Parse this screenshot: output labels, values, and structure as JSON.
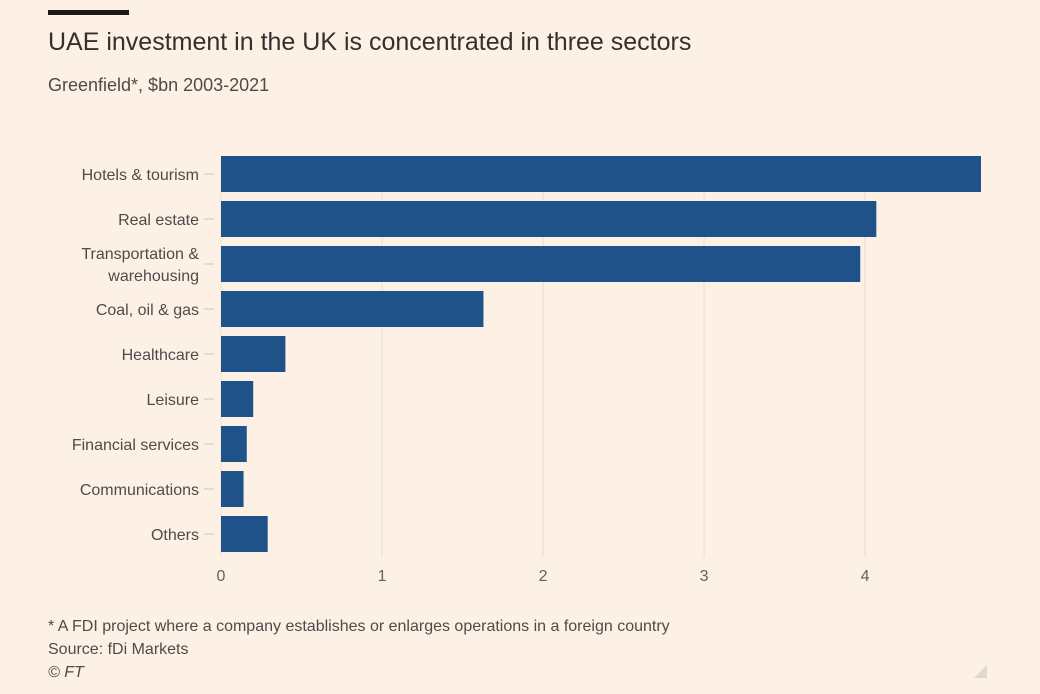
{
  "header": {
    "title": "UAE investment in the UK is concentrated in three sectors",
    "subtitle": "Greenfield*, $bn 2003-2021"
  },
  "footer": {
    "note": "* A FDI project where a company establishes or enlarges operations in a foreign country",
    "source": "Source: fDi Markets",
    "credit": "© FT"
  },
  "colors": {
    "bar": "#1f5289",
    "background": "#fdf1e6",
    "grid": "#e9ded4"
  },
  "chart_data": {
    "type": "bar",
    "orientation": "horizontal",
    "title": "UAE investment in the UK is concentrated in three sectors",
    "subtitle": "Greenfield*, $bn 2003-2021",
    "categories": [
      [
        "Hotels & tourism"
      ],
      [
        "Real estate"
      ],
      [
        "Transportation &",
        "warehousing"
      ],
      [
        "Coal, oil & gas"
      ],
      [
        "Healthcare"
      ],
      [
        "Leisure"
      ],
      [
        "Financial services"
      ],
      [
        "Communications"
      ],
      [
        "Others"
      ]
    ],
    "values": [
      4.72,
      4.07,
      3.97,
      1.63,
      0.4,
      0.2,
      0.16,
      0.14,
      0.29
    ],
    "xlim": [
      0,
      4.72
    ],
    "xticks": [
      "0",
      "1",
      "2",
      "3",
      "4"
    ],
    "grid": true
  }
}
